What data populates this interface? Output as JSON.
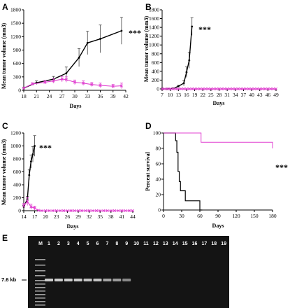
{
  "colors": {
    "treated": "#e040d0",
    "control": "#000000",
    "gel_bg": "#141414",
    "band": "#d6d6d6"
  },
  "chart_data": [
    {
      "panel": "A",
      "type": "line",
      "ylabel": "Mean tumor volume (mm3)",
      "xlabel": "Days",
      "xlim": [
        18,
        42
      ],
      "ylim": [
        0,
        1800
      ],
      "xticks": [
        18,
        21,
        24,
        27,
        30,
        33,
        36,
        39,
        42
      ],
      "yticks": [
        0,
        300,
        600,
        900,
        1200,
        1500,
        1800
      ],
      "annotation": "***",
      "series": [
        {
          "color": "#000000",
          "x": [
            18,
            21,
            25,
            28,
            31,
            33,
            36,
            41
          ],
          "y": [
            50,
            170,
            250,
            380,
            730,
            1060,
            1150,
            1330
          ],
          "err": [
            20,
            40,
            60,
            140,
            200,
            260,
            310,
            300
          ]
        },
        {
          "color": "#e040d0",
          "x": [
            18,
            20,
            23,
            25,
            27,
            28,
            30,
            32,
            34,
            36,
            39,
            41
          ],
          "y": [
            50,
            140,
            180,
            210,
            250,
            240,
            180,
            160,
            130,
            110,
            90,
            100
          ],
          "err": [
            20,
            30,
            40,
            50,
            60,
            60,
            50,
            50,
            45,
            50,
            40,
            60
          ]
        }
      ]
    },
    {
      "panel": "B",
      "type": "line",
      "ylabel": "Mean tumor volume (mm3)",
      "xlabel": "Days",
      "xlim": [
        7,
        49
      ],
      "ylim": [
        0,
        1800
      ],
      "xticks": [
        7,
        10,
        13,
        16,
        19,
        22,
        25,
        28,
        31,
        34,
        37,
        40,
        43,
        46,
        49
      ],
      "yticks": [
        0,
        200,
        400,
        600,
        800,
        1000,
        1200,
        1400,
        1600,
        1800
      ],
      "annotation": "***",
      "series": [
        {
          "color": "#000000",
          "x": [
            7,
            9,
            11,
            13,
            15,
            16,
            17,
            18
          ],
          "y": [
            0,
            0,
            10,
            60,
            130,
            380,
            650,
            1420
          ],
          "err": [
            0,
            0,
            10,
            20,
            60,
            120,
            180,
            200
          ]
        },
        {
          "color": "#e040d0",
          "x": [
            7,
            8,
            9,
            10,
            11,
            12,
            13,
            14,
            15,
            16,
            17,
            18,
            19,
            20,
            21,
            22,
            23,
            24,
            25,
            26,
            27,
            28,
            29,
            30,
            31,
            32,
            33,
            34,
            35,
            36,
            37,
            38,
            39,
            40,
            41,
            42,
            43,
            44,
            45,
            46,
            47,
            48,
            49
          ],
          "y": [
            0,
            0,
            0,
            0,
            0,
            0,
            0,
            0,
            0,
            0,
            0,
            0,
            0,
            0,
            0,
            0,
            0,
            0,
            0,
            0,
            0,
            0,
            0,
            0,
            0,
            0,
            0,
            0,
            0,
            0,
            0,
            0,
            0,
            0,
            0,
            0,
            0,
            0,
            0,
            0,
            0,
            0,
            0
          ],
          "err": []
        }
      ]
    },
    {
      "panel": "C",
      "type": "line",
      "ylabel": "Mean tumor volume (mm3)",
      "xlabel": "Days",
      "xlim": [
        14,
        44
      ],
      "ylim": [
        0,
        1200
      ],
      "xticks": [
        14,
        17,
        20,
        23,
        26,
        29,
        32,
        35,
        38,
        41,
        44
      ],
      "yticks": [
        0,
        200,
        400,
        600,
        800,
        1000,
        1200
      ],
      "annotation": "***",
      "series": [
        {
          "color": "#000000",
          "x": [
            14,
            15,
            15.5,
            16,
            16.5,
            17
          ],
          "y": [
            60,
            180,
            550,
            760,
            870,
            1000
          ],
          "err": [
            20,
            40,
            80,
            100,
            120,
            160
          ]
        },
        {
          "color": "#e040d0",
          "x": [
            14,
            15,
            16,
            17,
            18,
            19,
            20,
            21,
            22,
            23,
            24,
            25,
            26,
            27,
            28,
            29,
            30,
            31,
            32,
            33,
            34,
            35,
            36,
            37,
            38,
            39,
            40,
            41,
            42,
            43,
            44
          ],
          "y": [
            80,
            140,
            60,
            40,
            5,
            0,
            0,
            0,
            0,
            0,
            0,
            0,
            0,
            0,
            0,
            0,
            0,
            0,
            0,
            0,
            0,
            0,
            0,
            0,
            0,
            0,
            0,
            0,
            0,
            0,
            0
          ],
          "err": [
            30,
            60,
            40,
            30,
            5,
            0,
            0,
            0,
            0,
            0,
            0,
            0,
            0,
            0,
            0,
            0,
            0,
            0,
            0,
            0,
            0,
            0,
            0,
            0,
            0,
            0,
            0,
            0,
            0,
            0,
            0
          ]
        }
      ]
    },
    {
      "panel": "D",
      "type": "step",
      "ylabel": "Percent survival",
      "xlabel": "Days",
      "xlim": [
        0,
        180
      ],
      "ylim": [
        0,
        100
      ],
      "xticks": [
        0,
        30,
        60,
        90,
        120,
        150,
        180
      ],
      "yticks": [
        0,
        20,
        40,
        60,
        80,
        100
      ],
      "annotation": "***",
      "series": [
        {
          "color": "#000000",
          "x": [
            0,
            18,
            20,
            22,
            24,
            26,
            28,
            30,
            32,
            34,
            36,
            38,
            40,
            42,
            44,
            46,
            48,
            50,
            52,
            54,
            56,
            58,
            60,
            62,
            64
          ],
          "y": [
            100,
            100,
            90,
            75,
            50,
            37,
            25,
            25,
            25,
            25,
            12,
            12,
            12,
            12,
            12,
            12,
            12,
            12,
            12,
            12,
            12,
            12,
            0,
            0,
            0
          ]
        },
        {
          "color": "#e040d0",
          "x": [
            0,
            50,
            62,
            180
          ],
          "y": [
            100,
            100,
            88,
            80
          ]
        }
      ]
    }
  ],
  "gel": {
    "panel": "E",
    "marker_label": "M",
    "lane_labels": [
      "1",
      "2",
      "3",
      "4",
      "5",
      "6",
      "7",
      "8",
      "9",
      "10",
      "11",
      "12",
      "13",
      "14",
      "15",
      "16",
      "17",
      "18",
      "19"
    ],
    "band_label": "7.6 kb",
    "band_intensity": [
      0.95,
      0.95,
      0.95,
      0.95,
      0.9,
      0.9,
      0.75,
      0.7,
      0.6,
      0,
      0,
      0,
      0,
      0,
      0,
      0,
      0,
      0,
      0
    ]
  }
}
